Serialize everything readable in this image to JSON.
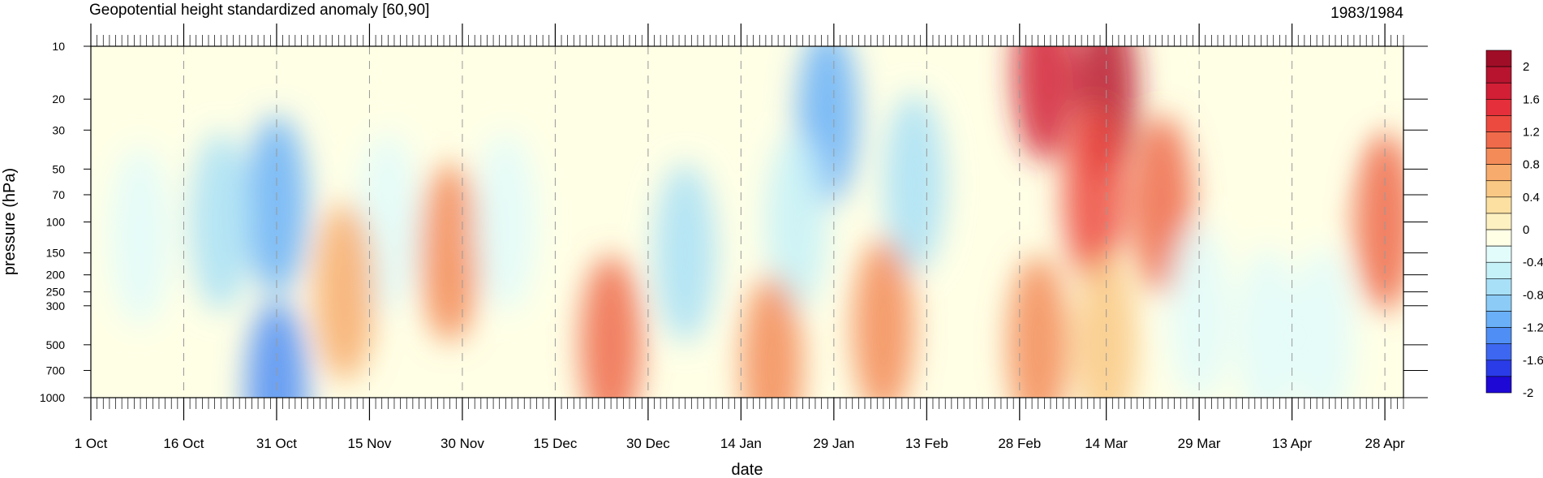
{
  "chart_data": {
    "type": "heatmap",
    "title": "Geopotential height standardized anomaly [60,90]",
    "period": "1983/1984",
    "xlabel": "date",
    "ylabel": "pressure (hPa)",
    "y_scale": "log",
    "y_reversed": true,
    "y_ticks": [
      10,
      20,
      30,
      50,
      70,
      100,
      150,
      200,
      250,
      300,
      500,
      700,
      1000
    ],
    "x_ticks": [
      "1 Oct",
      "16 Oct",
      "31 Oct",
      "15 Nov",
      "30 Nov",
      "15 Dec",
      "30 Dec",
      "14 Jan",
      "29 Jan",
      "13 Feb",
      "28 Feb",
      "14 Mar",
      "29 Mar",
      "13 Apr",
      "28 Apr"
    ],
    "colorbar": {
      "levels": [
        -2.2,
        -2,
        -1.8,
        -1.6,
        -1.4,
        -1.2,
        -1,
        -0.8,
        -0.6,
        -0.4,
        -0.2,
        0,
        0.2,
        0.4,
        0.6,
        0.8,
        1,
        1.2,
        1.4,
        1.6,
        1.8,
        2,
        2.2
      ],
      "labels": [
        "2",
        "1.6",
        "1.2",
        "0.8",
        "0.4",
        "0",
        "-0.4",
        "-0.8",
        "-1.2",
        "-1.6",
        "-2"
      ],
      "colors": [
        "#1e08d6",
        "#2a3be8",
        "#3d67f0",
        "#4f8ef5",
        "#69b0f8",
        "#8bcbf6",
        "#a8e0f7",
        "#c5f1f8",
        "#e2fbfb",
        "#ffffe6",
        "#fdf1c2",
        "#fbe0a2",
        "#f9c884",
        "#f7ab6c",
        "#f38b58",
        "#ef6a4a",
        "#ed4a3f",
        "#e52f3a",
        "#d21f36",
        "#b8142f",
        "#a00d27"
      ]
    },
    "anomaly_features": [
      {
        "date": "31 Oct",
        "pressure_hPa": 80,
        "value": -1.3
      },
      {
        "date": "31 Oct",
        "pressure_hPa": 900,
        "value": -1.5
      },
      {
        "date": "9 Oct",
        "pressure_hPa": 120,
        "value": -0.6
      },
      {
        "date": "22 Oct",
        "pressure_hPa": 100,
        "value": -0.9
      },
      {
        "date": "18 Nov",
        "pressure_hPa": 100,
        "value": -0.6
      },
      {
        "date": "28 Nov",
        "pressure_hPa": 150,
        "value": 0.6
      },
      {
        "date": "11 Nov",
        "pressure_hPa": 250,
        "value": 0.5
      },
      {
        "date": "7 Dec",
        "pressure_hPa": 100,
        "value": -0.5
      },
      {
        "date": "24 Dec",
        "pressure_hPa": 500,
        "value": 0.9
      },
      {
        "date": "5 Jan",
        "pressure_hPa": 150,
        "value": -0.9
      },
      {
        "date": "28 Jan",
        "pressure_hPa": 25,
        "value": -1.3
      },
      {
        "date": "23 Jan",
        "pressure_hPa": 100,
        "value": -0.8
      },
      {
        "date": "11 Feb",
        "pressure_hPa": 60,
        "value": -0.9
      },
      {
        "date": "19 Jan",
        "pressure_hPa": 650,
        "value": 0.7
      },
      {
        "date": "6 Feb",
        "pressure_hPa": 400,
        "value": 0.6
      },
      {
        "date": "4 Mar",
        "pressure_hPa": 14,
        "value": 1.5
      },
      {
        "date": "14 Mar",
        "pressure_hPa": 18,
        "value": 1.6
      },
      {
        "date": "12 Mar",
        "pressure_hPa": 70,
        "value": 1.1
      },
      {
        "date": "23 Mar",
        "pressure_hPa": 80,
        "value": 0.8
      },
      {
        "date": "3 Mar",
        "pressure_hPa": 500,
        "value": 0.6
      },
      {
        "date": "14 Mar",
        "pressure_hPa": 500,
        "value": 0.2
      },
      {
        "date": "29 Mar",
        "pressure_hPa": 330,
        "value": -0.5
      },
      {
        "date": "9 Apr",
        "pressure_hPa": 450,
        "value": -0.5
      },
      {
        "date": "18 Apr",
        "pressure_hPa": 450,
        "value": -0.6
      },
      {
        "date": "16 Apr",
        "pressure_hPa": 20,
        "value": -0.3
      },
      {
        "date": "28 Apr",
        "pressure_hPa": 100,
        "value": 0.9
      }
    ]
  }
}
